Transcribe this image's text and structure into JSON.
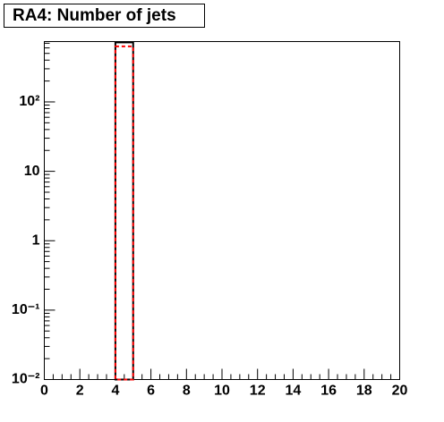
{
  "chart_data": {
    "type": "histogram",
    "title": "RA4: Number of jets",
    "bins": [
      0,
      1,
      2,
      3,
      4,
      5,
      6,
      7,
      8,
      9,
      10,
      11,
      12,
      13,
      14,
      15,
      16,
      17,
      18,
      19,
      20
    ],
    "series": [
      {
        "color": "#000000",
        "line_style": "solid",
        "values": [
          0,
          0,
          0,
          0,
          720,
          0,
          0,
          0,
          0,
          0,
          0,
          0,
          0,
          0,
          0,
          0,
          0,
          0,
          0,
          0
        ]
      },
      {
        "color": "#ff0000",
        "line_style": "dashed",
        "values": [
          0,
          0,
          0,
          0,
          630,
          0,
          0,
          0,
          0,
          0,
          0,
          0,
          0,
          0,
          0,
          0,
          0,
          0,
          0,
          0
        ]
      }
    ],
    "xlim": [
      0,
      20
    ],
    "xticks": [
      0,
      2,
      4,
      6,
      8,
      10,
      12,
      14,
      16,
      18,
      20
    ],
    "ylim": [
      0.01,
      740
    ],
    "log_y": true,
    "yticks": [
      {
        "value": 0.01,
        "label": "10⁻²"
      },
      {
        "value": 0.1,
        "label": "10⁻¹"
      },
      1,
      10,
      {
        "value": 100,
        "label": "10²"
      }
    ]
  }
}
